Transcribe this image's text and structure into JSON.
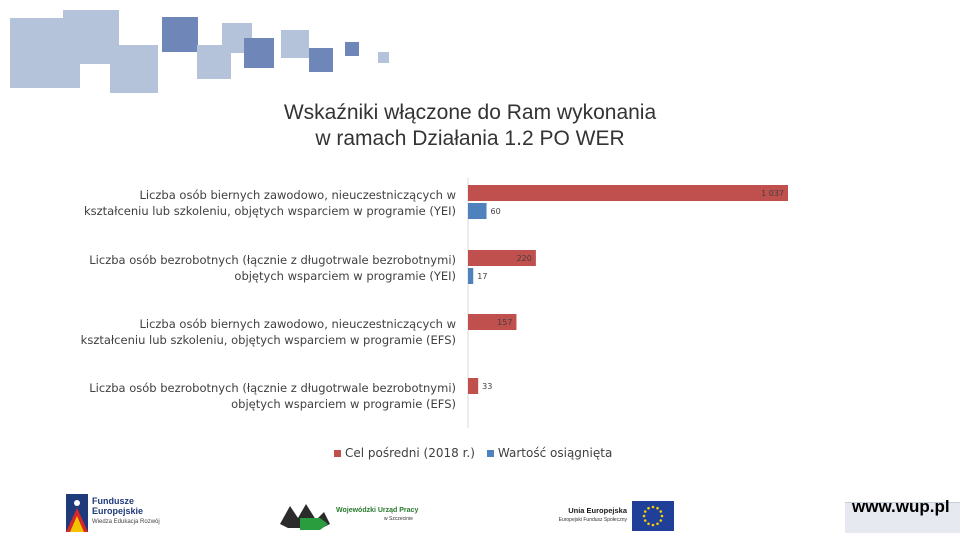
{
  "title_line1": "Wskaźniki włączone do Ram wykonania",
  "title_line2": "w ramach Działania 1.2 PO WER",
  "colors": {
    "series1": "#c0504d",
    "series2": "#4f81bd",
    "deco_dark": "#6f87b8",
    "deco_light": "#b4c2da"
  },
  "chart_data": {
    "type": "bar",
    "orientation": "horizontal",
    "categories": [
      [
        "Liczba osób biernych zawodowo, nieuczestniczących w",
        "kształceniu lub szkoleniu, objętych wsparciem w programie (YEI)"
      ],
      [
        "Liczba osób bezrobotnych (łącznie z długotrwale bezrobotnymi)",
        "objętych wsparciem w programie (YEI)"
      ],
      [
        "Liczba osób biernych zawodowo, nieuczestniczących w",
        "kształceniu lub szkoleniu, objętych wsparciem w programie (EFS)"
      ],
      [
        "Liczba osób bezrobotnych (łącznie z długotrwale bezrobotnymi)",
        "objętych wsparciem w programie (EFS)"
      ]
    ],
    "series": [
      {
        "name": "Cel pośredni (2018 r.)",
        "values": [
          1037,
          220,
          157,
          33
        ],
        "labels": [
          "1 037",
          "220",
          "157",
          "33"
        ]
      },
      {
        "name": "Wartość osiągnięta",
        "values": [
          60,
          17,
          null,
          null
        ],
        "labels": [
          "60",
          "17",
          "",
          ""
        ]
      }
    ],
    "xlim": [
      0,
      1100
    ],
    "legend": "bottom"
  },
  "footer": {
    "fe_line1": "Fundusze",
    "fe_line2": "Europejskie",
    "fe_line3": "Wiedza Edukacja Rozwój",
    "wup_line1": "Wojewódzki Urząd Pracy",
    "wup_line2": "w Szczecinie",
    "ue_line1": "Unia Europejska",
    "ue_line2": "Europejski Fundusz Społeczny",
    "www": "www.wup.pl"
  }
}
